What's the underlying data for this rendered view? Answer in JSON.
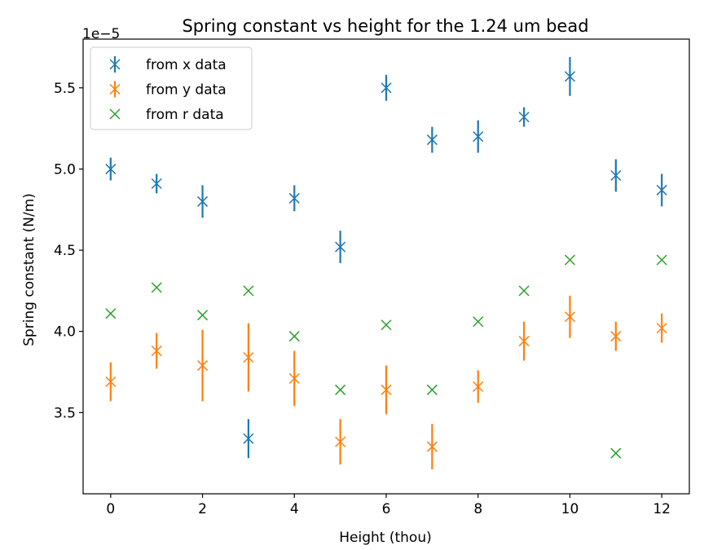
{
  "chart_data": {
    "type": "scatter",
    "title": "Spring constant vs height for the 1.24 um bead",
    "xlabel": "Height (thou)",
    "ylabel": "Spring constant (N/m)",
    "y_offset_label": "1e−5",
    "xlim": [
      -0.6,
      12.6
    ],
    "ylim": [
      3.0,
      5.8
    ],
    "xticks": [
      0,
      2,
      4,
      6,
      8,
      10,
      12
    ],
    "xtick_labels": [
      "0",
      "2",
      "4",
      "6",
      "8",
      "10",
      "12"
    ],
    "yticks": [
      3.5,
      4.0,
      4.5,
      5.0,
      5.5
    ],
    "ytick_labels": [
      "3.5",
      "4.0",
      "4.5",
      "5.0",
      "5.5"
    ],
    "grid": false,
    "legend_position": "top-left",
    "x": [
      0,
      1,
      2,
      3,
      4,
      5,
      6,
      7,
      8,
      9,
      10,
      11,
      12
    ],
    "series": [
      {
        "name": "from x data",
        "color": "#1f77b4",
        "marker": "x",
        "errorbars": true,
        "values": [
          5.0,
          4.91,
          4.8,
          3.34,
          4.82,
          4.52,
          5.5,
          5.18,
          5.2,
          5.32,
          5.57,
          4.96,
          4.87
        ],
        "errors": [
          0.07,
          0.06,
          0.1,
          0.12,
          0.08,
          0.1,
          0.08,
          0.08,
          0.1,
          0.06,
          0.12,
          0.1,
          0.1
        ]
      },
      {
        "name": "from y data",
        "color": "#ff7f0e",
        "marker": "x",
        "errorbars": true,
        "values": [
          3.69,
          3.88,
          3.79,
          3.84,
          3.71,
          3.32,
          3.64,
          3.29,
          3.66,
          3.94,
          4.09,
          3.97,
          4.02
        ],
        "errors": [
          0.12,
          0.11,
          0.22,
          0.21,
          0.17,
          0.14,
          0.15,
          0.14,
          0.1,
          0.12,
          0.13,
          0.09,
          0.09
        ]
      },
      {
        "name": "from r data",
        "color": "#2ca02c",
        "marker": "x",
        "errorbars": false,
        "values": [
          4.11,
          4.27,
          4.1,
          4.25,
          3.97,
          3.64,
          4.04,
          3.64,
          4.06,
          4.25,
          4.44,
          3.25,
          4.44
        ]
      }
    ]
  }
}
